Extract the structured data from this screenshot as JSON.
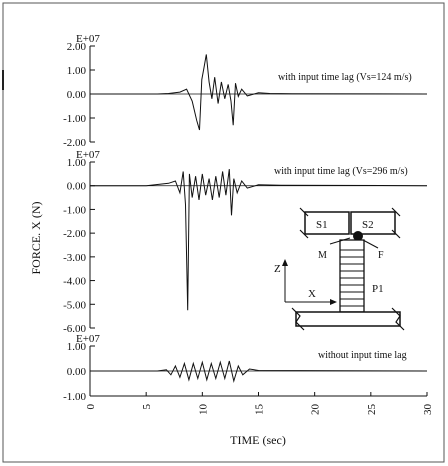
{
  "chart_data": [
    {
      "type": "line",
      "panel": "top",
      "exponent_label": "E+07",
      "annotation": "with input time lag (Vs=124 m/s)",
      "ylim": [
        -2.0,
        2.0
      ],
      "yticks": [
        2.0,
        1.0,
        0.0,
        -1.0,
        -2.0
      ],
      "ytick_labels": [
        "2.00",
        "1.00",
        "0.00",
        "-1.00",
        "-2.00"
      ],
      "series": [
        {
          "x": [
            0,
            6,
            7,
            8,
            8.6,
            9.1,
            9.5,
            9.75,
            9.95,
            10.15,
            10.35,
            10.6,
            10.85,
            11.1,
            11.4,
            11.7,
            12.0,
            12.3,
            12.55,
            12.75,
            12.95,
            13.2,
            13.5,
            14,
            15,
            16,
            18,
            30
          ],
          "y": [
            0,
            0,
            0.02,
            0.08,
            0.2,
            -0.3,
            -1.1,
            -1.5,
            0.6,
            1.1,
            1.65,
            0.5,
            -0.2,
            0.7,
            -0.4,
            0.5,
            -0.2,
            0.4,
            -0.3,
            -1.3,
            0.45,
            -0.1,
            0.2,
            -0.08,
            0.05,
            0.02,
            0.01,
            0
          ]
        }
      ]
    },
    {
      "type": "line",
      "panel": "middle",
      "exponent_label": "E+07",
      "annotation": "with input time lag (Vs=296 m/s)",
      "ylim": [
        -6.0,
        1.0
      ],
      "yticks": [
        1.0,
        0.0,
        -1.0,
        -2.0,
        -3.0,
        -4.0,
        -5.0,
        -6.0
      ],
      "ytick_labels": [
        "1.00",
        "0.00",
        "-1.00",
        "-2.00",
        "-3.00",
        "-4.00",
        "-5.00",
        "-6.00"
      ],
      "series": [
        {
          "x": [
            0,
            5,
            6,
            7,
            7.6,
            8.0,
            8.3,
            8.5,
            8.7,
            8.85,
            9.1,
            9.4,
            9.7,
            10.0,
            10.3,
            10.6,
            10.9,
            11.2,
            11.5,
            11.8,
            12.1,
            12.4,
            12.6,
            12.8,
            13.1,
            13.5,
            14,
            15,
            17,
            30
          ],
          "y": [
            0,
            0,
            0.05,
            0.1,
            0.2,
            -0.3,
            0.6,
            -0.8,
            -5.25,
            0.5,
            -0.5,
            0.4,
            -0.6,
            0.5,
            -0.4,
            0.3,
            -0.6,
            0.4,
            -0.5,
            0.6,
            -0.4,
            0.7,
            -1.25,
            0.3,
            -0.3,
            0.2,
            -0.1,
            0.04,
            0.02,
            0
          ]
        }
      ]
    },
    {
      "type": "line",
      "panel": "bottom",
      "exponent_label": "E+07",
      "annotation": "without input time lag",
      "ylim": [
        -1.0,
        1.0
      ],
      "yticks": [
        1.0,
        0.0,
        -1.0
      ],
      "ytick_labels": [
        "1.00",
        "0.00",
        "-1.00"
      ],
      "xlabel": "TIME (sec)",
      "xlim": [
        0,
        30
      ],
      "xticks": [
        0,
        5,
        10,
        15,
        20,
        25,
        30
      ],
      "xtick_labels": [
        "0",
        "5",
        "10",
        "15",
        "20",
        "25",
        "30"
      ],
      "series": [
        {
          "x": [
            0,
            6,
            6.8,
            7.2,
            7.6,
            8.0,
            8.4,
            8.8,
            9.2,
            9.6,
            10.0,
            10.4,
            10.8,
            11.2,
            11.6,
            12.0,
            12.4,
            12.8,
            13.2,
            13.6,
            14.2,
            15,
            30
          ],
          "y": [
            0,
            0,
            0.05,
            -0.15,
            0.2,
            -0.25,
            0.3,
            -0.35,
            0.3,
            -0.3,
            0.35,
            -0.35,
            0.3,
            -0.3,
            0.35,
            -0.3,
            0.4,
            -0.4,
            0.2,
            -0.15,
            0.08,
            0.02,
            0
          ]
        }
      ]
    }
  ],
  "ylabel": "FORCE. X (N)",
  "inset": {
    "label_s1": "S1",
    "label_s2": "S2",
    "label_z": "Z",
    "label_x": "X",
    "label_m": "M",
    "label_f": "F",
    "label_p1": "P1"
  }
}
